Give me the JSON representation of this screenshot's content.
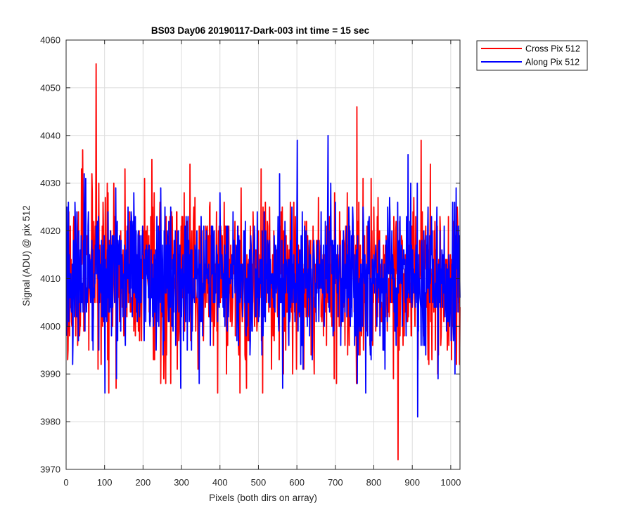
{
  "chart_data": {
    "type": "line",
    "title": "BS03 Day06 20190117-Dark-003 int time = 15 sec",
    "xlabel": "Pixels (both dirs on array)",
    "ylabel": "Signal (ADU) @ pix 512",
    "xlim": [
      0,
      1024
    ],
    "ylim": [
      3970,
      4060
    ],
    "xticks": [
      "0",
      "100",
      "200",
      "300",
      "400",
      "500",
      "600",
      "700",
      "800",
      "900",
      "1000"
    ],
    "yticks": [
      "3970",
      "3980",
      "3990",
      "4000",
      "4010",
      "4020",
      "4030",
      "4040",
      "4050",
      "4060"
    ],
    "xtick_values": [
      0,
      100,
      200,
      300,
      400,
      500,
      600,
      700,
      800,
      900,
      1000
    ],
    "ytick_values": [
      3970,
      3980,
      3990,
      4000,
      4010,
      4020,
      4030,
      4040,
      4050,
      4060
    ],
    "grid": true,
    "legend_position": "outside top-right",
    "series": [
      {
        "name": "Cross Pix 512",
        "color": "#ff0000",
        "noise": {
          "mean": 4010,
          "sd": 8.5,
          "min": 3986,
          "max": 4035,
          "n": 1024,
          "seed": 17
        },
        "peaks": [
          [
            3,
            3993
          ],
          [
            42,
            4037
          ],
          [
            77,
            4055
          ],
          [
            110,
            3986
          ],
          [
            222,
            4035
          ],
          [
            258,
            3988
          ],
          [
            755,
            4046
          ],
          [
            862,
            3972
          ],
          [
            922,
            4039
          ]
        ]
      },
      {
        "name": "Along Pix 512",
        "color": "#0000ff",
        "noise": {
          "mean": 4010,
          "sd": 7.5,
          "min": 3986,
          "max": 4033,
          "n": 1024,
          "seed": 91
        },
        "peaks": [
          [
            50,
            4031
          ],
          [
            130,
            3989
          ],
          [
            345,
            3988
          ],
          [
            562,
            3987
          ],
          [
            600,
            4039
          ],
          [
            680,
            4040
          ],
          [
            778,
            3986
          ],
          [
            888,
            4036
          ],
          [
            913,
            3981
          ],
          [
            1010,
            3990
          ]
        ]
      }
    ]
  }
}
